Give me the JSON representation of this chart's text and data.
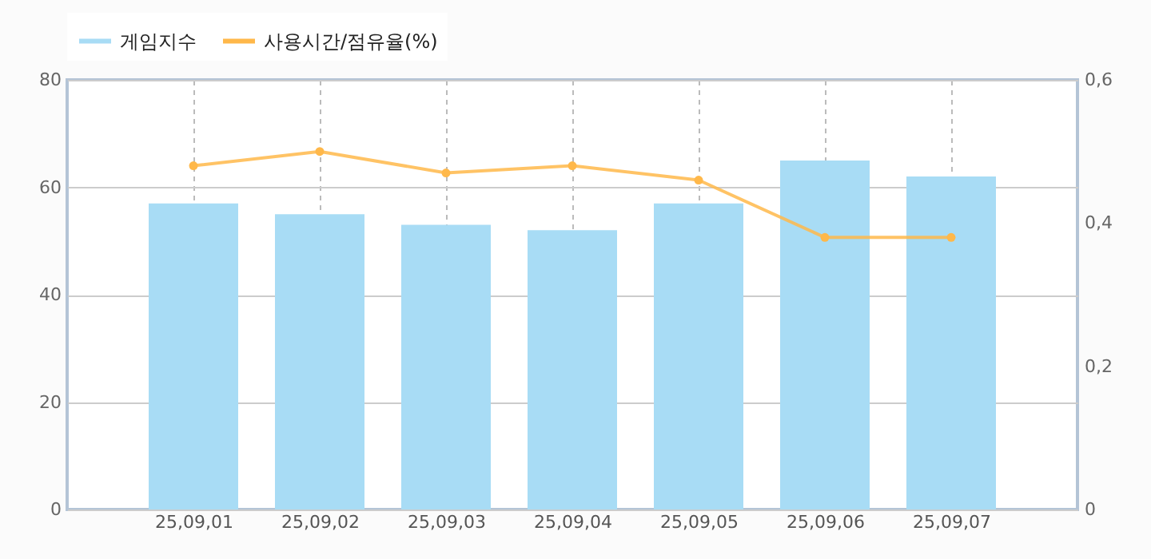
{
  "chart_data": {
    "type": "bar",
    "categories": [
      "25,09,01",
      "25,09,02",
      "25,09,03",
      "25,09,04",
      "25,09,05",
      "25,09,06",
      "25,09,07"
    ],
    "series": [
      {
        "name": "게임지수",
        "color": "#a8dcf5",
        "values": [
          57,
          55,
          53,
          52,
          57,
          65,
          62
        ]
      },
      {
        "name": "사용시간/점유율(%)",
        "type": "line",
        "axis": "y2",
        "color": "#ffb84a",
        "values": [
          0.48,
          0.5,
          0.47,
          0.48,
          0.46,
          0.38,
          0.38
        ]
      }
    ],
    "ylim": [
      0,
      80
    ],
    "yticks": [
      0,
      20,
      40,
      60,
      80
    ],
    "y2lim": [
      0,
      0.6
    ],
    "y2ticks": [
      {
        "value": 0,
        "label": "0"
      },
      {
        "value": 0.2,
        "label": "0,2"
      },
      {
        "value": 0.4,
        "label": "0,4"
      },
      {
        "value": 0.6,
        "label": "0,6"
      }
    ],
    "grid": true,
    "legend": "top left",
    "marker": "circle",
    "line_style": "solid"
  }
}
